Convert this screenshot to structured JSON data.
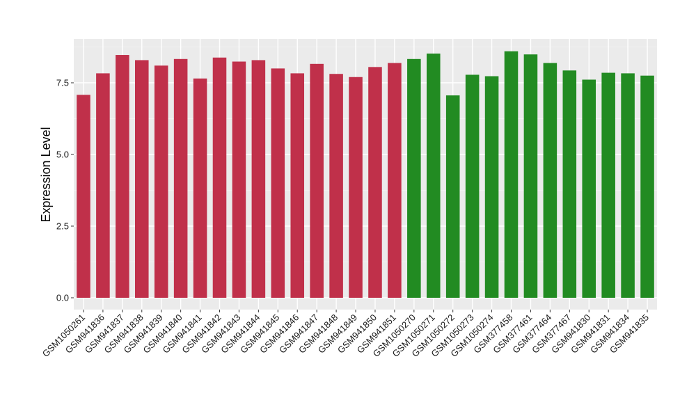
{
  "chart_data": {
    "type": "bar",
    "title": "",
    "xlabel": "",
    "ylabel": "Expression Level",
    "ylim": [
      0,
      9.0
    ],
    "yticks": [
      0.0,
      2.5,
      5.0,
      7.5
    ],
    "ytick_labels": [
      "0.0",
      "2.5",
      "5.0",
      "7.5"
    ],
    "grid": true,
    "legend": "none",
    "categories": [
      "GSM1050261",
      "GSM941836",
      "GSM941837",
      "GSM941838",
      "GSM941839",
      "GSM941840",
      "GSM941841",
      "GSM941842",
      "GSM941843",
      "GSM941844",
      "GSM941845",
      "GSM941846",
      "GSM941847",
      "GSM941848",
      "GSM941849",
      "GSM941850",
      "GSM941851",
      "GSM1050270",
      "GSM1050271",
      "GSM1050272",
      "GSM1050273",
      "GSM1050274",
      "GSM377458",
      "GSM377461",
      "GSM377464",
      "GSM377467",
      "GSM941830",
      "GSM941831",
      "GSM941834",
      "GSM941835"
    ],
    "values": [
      7.08,
      7.83,
      8.47,
      8.29,
      8.1,
      8.33,
      7.65,
      8.38,
      8.24,
      8.29,
      8.0,
      7.83,
      8.16,
      7.81,
      7.7,
      8.05,
      8.19,
      8.33,
      8.52,
      7.06,
      7.78,
      7.73,
      8.6,
      8.49,
      8.19,
      7.93,
      7.61,
      7.85,
      7.83,
      7.75
    ],
    "bar_colors": [
      "#c0304a",
      "#c0304a",
      "#c0304a",
      "#c0304a",
      "#c0304a",
      "#c0304a",
      "#c0304a",
      "#c0304a",
      "#c0304a",
      "#c0304a",
      "#c0304a",
      "#c0304a",
      "#c0304a",
      "#c0304a",
      "#c0304a",
      "#c0304a",
      "#c0304a",
      "#228b22",
      "#228b22",
      "#228b22",
      "#228b22",
      "#228b22",
      "#228b22",
      "#228b22",
      "#228b22",
      "#228b22",
      "#228b22",
      "#228b22",
      "#228b22",
      "#228b22"
    ],
    "colors": {
      "panel_background": "#ebebeb",
      "grid_major": "#ffffff",
      "grid_minor": "#f5f5f5",
      "group_1": "#c0304a",
      "group_2": "#228b22"
    }
  }
}
